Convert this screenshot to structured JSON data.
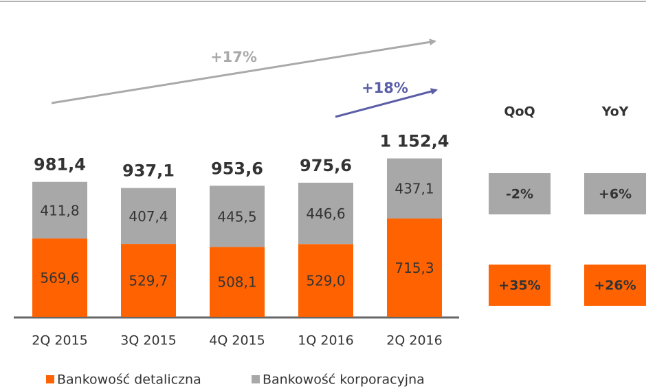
{
  "chart_data": {
    "type": "stacked_bar",
    "categories": [
      "2Q 2015",
      "3Q 2015",
      "4Q 2015",
      "1Q 2016",
      "2Q 2016"
    ],
    "series": [
      {
        "name": "Bankowość detaliczna",
        "color": "#ff6200",
        "values": [
          569.6,
          529.7,
          508.1,
          529.0,
          715.3
        ],
        "value_labels": [
          "569,6",
          "529,7",
          "508,1",
          "529,0",
          "715,3"
        ]
      },
      {
        "name": "Bankowość korporacyjna",
        "color": "#a8a8a8",
        "values": [
          411.8,
          407.4,
          445.5,
          446.6,
          437.1
        ],
        "value_labels": [
          "411,8",
          "407,4",
          "445,5",
          "446,6",
          "437,1"
        ]
      }
    ],
    "totals": {
      "values": [
        981.4,
        937.1,
        953.6,
        975.6,
        1152.4
      ],
      "value_labels": [
        "981,4",
        "937,1",
        "953,6",
        "975,6",
        "1 152,4"
      ]
    },
    "ylim": [
      0,
      1400
    ],
    "annotations": [
      "+17%",
      "+18%"
    ],
    "change_table": {
      "headers": [
        "QoQ",
        "YoY"
      ],
      "rows": [
        [
          "-2%",
          "+6%"
        ],
        [
          "+35%",
          "+26%"
        ]
      ]
    }
  }
}
